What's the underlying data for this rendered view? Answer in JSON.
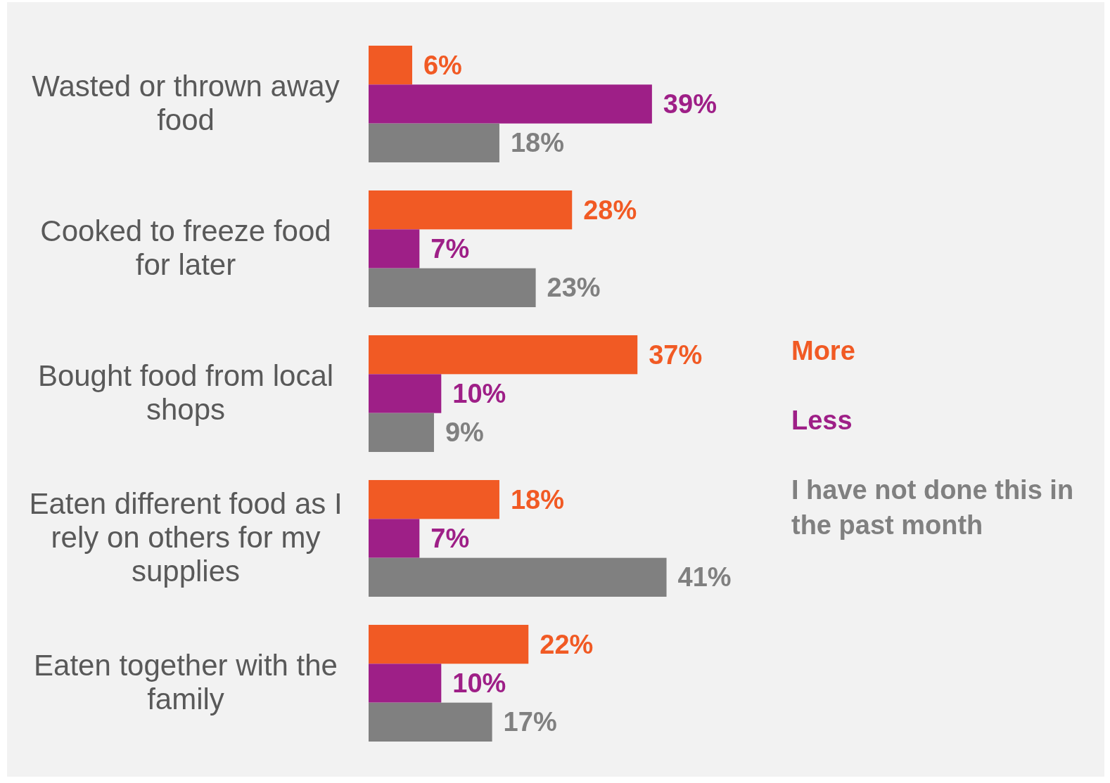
{
  "chart_data": {
    "type": "bar",
    "orientation": "horizontal",
    "categories": [
      "Wasted or thrown away food",
      "Cooked to freeze food for later",
      "Bought food from local shops",
      "Eaten different food as I rely on others for my supplies",
      "Eaten together with the family"
    ],
    "series": [
      {
        "name": "More",
        "color": "#f15a24",
        "values": [
          6,
          28,
          37,
          18,
          22
        ],
        "value_labels": [
          "6%",
          "28%",
          "37%",
          "18%",
          "22%"
        ]
      },
      {
        "name": "Less",
        "color": "#9e1f87",
        "values": [
          39,
          7,
          10,
          7,
          10
        ],
        "value_labels": [
          "39%",
          "7%",
          "10%",
          "7%",
          "10%"
        ]
      },
      {
        "name": "I have not done this in the past month",
        "color": "#808080",
        "values": [
          18,
          23,
          9,
          41,
          17
        ],
        "value_labels": [
          "18%",
          "23%",
          "9%",
          "41%",
          "17%"
        ]
      }
    ],
    "tick_labels": "y",
    "legend": "right"
  }
}
